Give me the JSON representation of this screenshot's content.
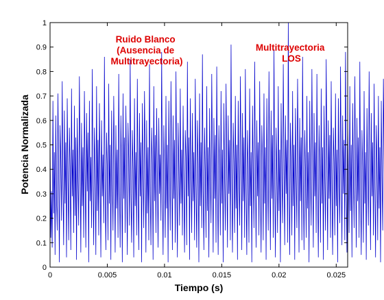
{
  "chart_data": {
    "type": "line",
    "xlabel": "Tiempo (s)",
    "ylabel": "Potencia Normalizada",
    "xlim": [
      0,
      0.026
    ],
    "ylim": [
      0,
      1
    ],
    "x_ticks": [
      "0",
      "0.005",
      "0.01",
      "0.015",
      "0.02",
      "0.025"
    ],
    "y_ticks": [
      "0",
      "0.1",
      "0.2",
      "0.3",
      "0.4",
      "0.5",
      "0.6",
      "0.7",
      "0.8",
      "0.9",
      "1"
    ],
    "grid": false,
    "series": [
      {
        "color": "#0000cc",
        "x_start": 0,
        "x_step": 6.25e-05,
        "values": [
          0.55,
          0.12,
          0.31,
          0.08,
          0.68,
          0.22,
          0.47,
          0.05,
          0.62,
          0.28,
          0.15,
          0.71,
          0.39,
          0.02,
          0.58,
          0.44,
          0.19,
          0.76,
          0.33,
          0.09,
          0.64,
          0.26,
          0.51,
          0.04,
          0.69,
          0.36,
          0.11,
          0.57,
          0.41,
          0.07,
          0.73,
          0.29,
          0.48,
          0.14,
          0.66,
          0.21,
          0.53,
          0.03,
          0.61,
          0.35,
          0.17,
          0.78,
          0.43,
          0.06,
          0.59,
          0.25,
          0.49,
          0.12,
          0.72,
          0.38,
          0.08,
          0.63,
          0.31,
          0.55,
          0.02,
          0.68,
          0.27,
          0.45,
          0.16,
          0.81,
          0.34,
          0.09,
          0.57,
          0.42,
          0.05,
          0.74,
          0.23,
          0.52,
          0.13,
          0.67,
          0.37,
          0.04,
          0.6,
          0.29,
          0.46,
          0.18,
          0.86,
          0.32,
          0.07,
          0.55,
          0.41,
          0.11,
          0.75,
          0.26,
          0.5,
          0.03,
          0.64,
          0.35,
          0.15,
          0.7,
          0.43,
          0.06,
          0.58,
          0.24,
          0.48,
          0.12,
          0.79,
          0.33,
          0.08,
          0.62,
          0.39,
          0.02,
          0.71,
          0.28,
          0.53,
          0.14,
          0.66,
          0.36,
          0.05,
          0.59,
          0.44,
          0.17,
          0.85,
          0.3,
          0.1,
          0.56,
          0.4,
          0.04,
          0.69,
          0.25,
          0.47,
          0.13,
          0.77,
          0.34,
          0.07,
          0.63,
          0.29,
          0.51,
          0.02,
          0.67,
          0.38,
          0.16,
          0.72,
          0.45,
          0.06,
          0.6,
          0.22,
          0.49,
          0.11,
          0.83,
          0.31,
          0.09,
          0.57,
          0.42,
          0.03,
          0.74,
          0.27,
          0.54,
          0.14,
          0.65,
          0.36,
          0.08,
          0.61,
          0.3,
          0.46,
          0.19,
          0.88,
          0.33,
          0.05,
          0.58,
          0.4,
          0.12,
          0.7,
          0.24,
          0.5,
          0.02,
          0.68,
          0.37,
          0.15,
          0.76,
          0.43,
          0.07,
          0.62,
          0.28,
          0.52,
          0.1,
          0.8,
          0.35,
          0.04,
          0.59,
          0.41,
          0.17,
          0.73,
          0.26,
          0.48,
          0.13,
          0.66,
          0.32,
          0.06,
          0.56,
          0.45,
          0.09,
          0.84,
          0.29,
          0.53,
          0.03,
          0.69,
          0.38,
          0.14,
          0.63,
          0.27,
          0.47,
          0.11,
          0.77,
          0.34,
          0.08,
          0.6,
          0.42,
          0.02,
          0.71,
          0.25,
          0.51,
          0.16,
          0.87,
          0.31,
          0.07,
          0.57,
          0.39,
          0.12,
          0.74,
          0.23,
          0.49,
          0.04,
          0.65,
          0.36,
          0.18,
          0.79,
          0.44,
          0.06,
          0.61,
          0.28,
          0.54,
          0.1,
          0.82,
          0.33,
          0.05,
          0.58,
          0.4,
          0.13,
          0.72,
          0.26,
          0.48,
          0.02,
          0.67,
          0.37,
          0.15,
          0.75,
          0.41,
          0.08,
          0.62,
          0.3,
          0.52,
          0.11,
          0.91,
          0.34,
          0.06,
          0.59,
          0.43,
          0.14,
          0.7,
          0.24,
          0.5,
          0.03,
          0.68,
          0.35,
          0.17,
          0.78,
          0.45,
          0.07,
          0.63,
          0.27,
          0.53,
          0.12,
          0.81,
          0.32,
          0.05,
          0.56,
          0.4,
          0.1,
          0.73,
          0.25,
          0.47,
          0.02,
          0.66,
          0.38,
          0.16,
          0.84,
          0.42,
          0.08,
          0.6,
          0.29,
          0.51,
          0.13,
          0.76,
          0.33,
          0.06,
          0.58,
          0.44,
          0.11,
          0.71,
          0.26,
          0.49,
          0.03,
          0.69,
          0.36,
          0.15,
          0.8,
          0.41,
          0.07,
          0.64,
          0.28,
          0.54,
          0.12,
          0.89,
          0.34,
          0.04,
          0.57,
          0.39,
          0.14,
          0.74,
          0.23,
          0.48,
          0.02,
          0.67,
          0.37,
          0.18,
          0.83,
          0.43,
          0.09,
          0.62,
          0.3,
          0.52,
          0.1,
          1.0,
          0.32,
          0.05,
          0.59,
          0.42,
          0.13,
          0.72,
          0.25,
          0.5,
          0.03,
          0.65,
          0.38,
          0.16,
          0.77,
          0.44,
          0.06,
          0.61,
          0.27,
          0.53,
          0.11,
          0.86,
          0.35,
          0.07,
          0.56,
          0.4,
          0.12,
          0.7,
          0.24,
          0.47,
          0.02,
          0.68,
          0.36,
          0.17,
          0.81,
          0.42,
          0.08,
          0.63,
          0.29,
          0.51,
          0.14,
          0.79,
          0.33,
          0.04,
          0.58,
          0.41,
          0.1,
          0.73,
          0.26,
          0.49,
          0.03,
          0.66,
          0.37,
          0.15,
          0.85,
          0.45,
          0.07,
          0.6,
          0.28,
          0.54,
          0.12,
          0.76,
          0.31,
          0.05,
          0.57,
          0.43,
          0.13,
          0.71,
          0.25,
          0.48,
          0.02,
          0.69,
          0.35,
          0.18,
          0.82,
          0.41,
          0.09,
          0.62,
          0.3,
          0.52,
          0.11,
          0.88,
          0.34,
          0.06,
          0.59,
          0.39,
          0.14,
          0.74,
          0.23,
          0.5,
          0.04,
          0.67,
          0.38,
          0.16,
          0.78,
          0.44,
          0.08,
          0.61,
          0.27,
          0.53,
          0.12,
          0.84,
          0.32,
          0.05,
          0.56,
          0.4,
          0.1,
          0.72,
          0.26,
          0.47,
          0.03,
          0.65,
          0.36,
          0.17,
          0.8,
          0.42,
          0.07,
          0.63,
          0.29,
          0.51,
          0.13,
          0.75,
          0.33,
          0.04,
          0.58,
          0.43,
          0.11,
          0.7,
          0.24,
          0.49,
          0.02,
          0.68,
          0.37,
          0.15,
          0.77,
          0.45,
          0.08,
          0.6,
          0.28,
          0.54,
          0.12,
          0.73,
          0.31,
          0.06,
          0.57,
          0.41,
          0.14,
          0.69,
          0.25,
          0.48,
          0.03,
          0.66,
          0.35,
          0.18,
          0.79,
          0.42,
          0.09,
          0.62,
          0.3,
          0.52,
          0.11,
          0.71,
          0.34,
          0.05,
          0.59,
          0.39,
          0.13,
          0.68,
          0.26,
          0.5,
          0.04,
          0.64,
          0.38,
          0.16,
          0.74,
          0.44,
          0.07,
          0.61,
          0.27,
          0.53,
          0.12,
          0.67,
          0.32,
          0.06,
          0.56,
          0.4,
          0.1,
          0.63,
          0.23,
          0.47,
          0.03,
          0.58,
          0.36,
          0.17,
          0.69,
          0.42,
          0.08,
          0.55,
          0.29,
          0.51,
          0.13,
          0.6,
          0.33,
          0.05,
          0.52,
          0.43,
          0.11,
          0.57,
          0.25,
          0.46,
          0.02,
          0.54,
          0.3,
          0.18
        ]
      }
    ],
    "annotations": [
      {
        "lines": [
          "Ruido Blanco",
          "(Ausencia de",
          "Multitrayectoria)"
        ],
        "color": "#dd0000"
      },
      {
        "lines": [
          "Multitrayectoria",
          "LOS"
        ],
        "color": "#dd0000"
      }
    ]
  }
}
